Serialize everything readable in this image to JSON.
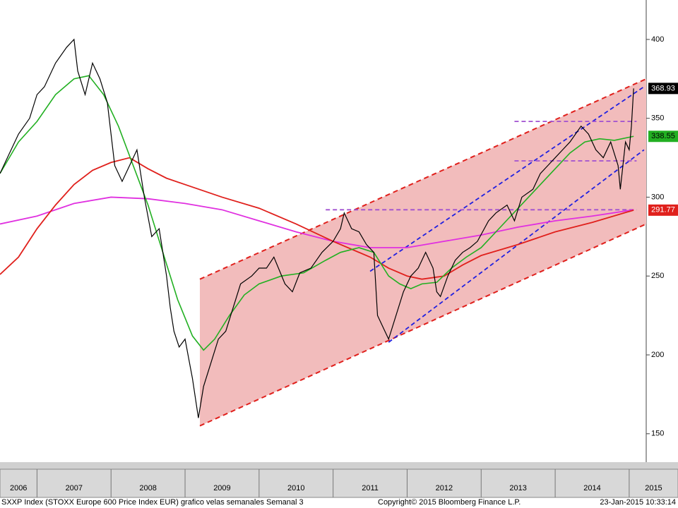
{
  "chart_data": {
    "type": "line",
    "xlim": [
      2006.5,
      2015.23
    ],
    "xticks": [
      2006,
      2007,
      2008,
      2009,
      2010,
      2011,
      2012,
      2013,
      2014,
      2015
    ],
    "ylim": [
      132,
      425
    ],
    "yticks": [
      150,
      200,
      250,
      300,
      350,
      400
    ],
    "series": [
      {
        "color": "#000000",
        "width": 1.2,
        "last_value": 368.93,
        "label_text": "#ffffff",
        "x": [
          2006.5,
          2006.6,
          2006.75,
          2006.9,
          2007.0,
          2007.1,
          2007.25,
          2007.4,
          2007.5,
          2007.55,
          2007.65,
          2007.75,
          2007.85,
          2007.95,
          2008.0,
          2008.05,
          2008.15,
          2008.25,
          2008.35,
          2008.45,
          2008.55,
          2008.65,
          2008.75,
          2008.8,
          2008.85,
          2008.92,
          2009.0,
          2009.1,
          2009.18,
          2009.25,
          2009.35,
          2009.45,
          2009.55,
          2009.65,
          2009.75,
          2009.9,
          2010.0,
          2010.1,
          2010.2,
          2010.35,
          2010.45,
          2010.55,
          2010.7,
          2010.85,
          2011.0,
          2011.1,
          2011.15,
          2011.25,
          2011.35,
          2011.45,
          2011.55,
          2011.6,
          2011.7,
          2011.75,
          2011.85,
          2011.95,
          2012.05,
          2012.15,
          2012.25,
          2012.35,
          2012.4,
          2012.45,
          2012.55,
          2012.65,
          2012.75,
          2012.85,
          2012.95,
          2013.1,
          2013.2,
          2013.35,
          2013.45,
          2013.55,
          2013.7,
          2013.8,
          2013.9,
          2014.0,
          2014.1,
          2014.2,
          2014.35,
          2014.45,
          2014.55,
          2014.65,
          2014.75,
          2014.85,
          2014.88,
          2014.95,
          2015.0,
          2015.03,
          2015.06
        ],
        "values": [
          315,
          325,
          340,
          350,
          365,
          370,
          385,
          395,
          400,
          380,
          365,
          385,
          375,
          360,
          340,
          320,
          310,
          320,
          330,
          300,
          275,
          280,
          250,
          230,
          215,
          205,
          210,
          185,
          160,
          180,
          195,
          210,
          215,
          230,
          245,
          250,
          255,
          255,
          262,
          245,
          240,
          252,
          255,
          265,
          272,
          280,
          290,
          280,
          278,
          270,
          265,
          225,
          215,
          210,
          225,
          240,
          250,
          255,
          265,
          255,
          240,
          237,
          250,
          260,
          265,
          268,
          272,
          285,
          290,
          295,
          285,
          300,
          305,
          315,
          320,
          325,
          330,
          335,
          345,
          340,
          330,
          325,
          335,
          320,
          305,
          335,
          330,
          345,
          368.93
        ]
      },
      {
        "color": "#22b022",
        "width": 1.6,
        "last_value": 338.55,
        "label_text": "#000000",
        "x": [
          2006.5,
          2006.75,
          2007.0,
          2007.25,
          2007.5,
          2007.7,
          2007.9,
          2008.1,
          2008.3,
          2008.5,
          2008.7,
          2008.9,
          2009.1,
          2009.25,
          2009.4,
          2009.6,
          2009.8,
          2010.0,
          2010.3,
          2010.6,
          2010.9,
          2011.1,
          2011.35,
          2011.55,
          2011.75,
          2011.9,
          2012.05,
          2012.2,
          2012.4,
          2012.6,
          2012.8,
          2013.0,
          2013.2,
          2013.4,
          2013.6,
          2013.8,
          2014.0,
          2014.2,
          2014.4,
          2014.6,
          2014.8,
          2015.0,
          2015.06
        ],
        "values": [
          315,
          335,
          348,
          365,
          375,
          377,
          365,
          345,
          320,
          295,
          265,
          235,
          212,
          203,
          210,
          225,
          238,
          245,
          250,
          252,
          260,
          265,
          268,
          265,
          250,
          245,
          242,
          245,
          246,
          255,
          262,
          268,
          278,
          288,
          298,
          308,
          318,
          328,
          335,
          337,
          336,
          338,
          338.55
        ]
      },
      {
        "color": "#e0201c",
        "width": 1.8,
        "last_value": 291.77,
        "label_text": "#ffffff",
        "x": [
          2006.5,
          2006.75,
          2007.0,
          2007.25,
          2007.5,
          2007.75,
          2008.0,
          2008.25,
          2008.5,
          2008.75,
          2009.0,
          2009.5,
          2010.0,
          2010.5,
          2011.0,
          2011.5,
          2011.75,
          2012.0,
          2012.2,
          2012.5,
          2012.75,
          2013.0,
          2013.5,
          2014.0,
          2014.5,
          2015.06
        ],
        "values": [
          251,
          262,
          280,
          295,
          308,
          317,
          322,
          325,
          318,
          312,
          308,
          300,
          293,
          283,
          272,
          262,
          255,
          250,
          248,
          250,
          257,
          263,
          270,
          278,
          284,
          291.77
        ]
      },
      {
        "color": "#e030e0",
        "width": 1.8,
        "x": [
          2006.5,
          2007.0,
          2007.5,
          2008.0,
          2008.5,
          2009.0,
          2009.5,
          2010.0,
          2010.5,
          2011.0,
          2011.5,
          2012.0,
          2012.5,
          2013.0,
          2013.5,
          2014.0,
          2014.5,
          2015.06
        ],
        "values": [
          283,
          288,
          296,
          300,
          299,
          296,
          292,
          285,
          278,
          272,
          268,
          268,
          272,
          276,
          281,
          285,
          288,
          292
        ]
      }
    ],
    "channel": {
      "fill": "#f2bcbc",
      "color": "#e0201c",
      "upper": {
        "x": [
          2009.2,
          2015.23
        ],
        "values": [
          248,
          375
        ]
      },
      "lower": {
        "x": [
          2009.2,
          2015.23
        ],
        "values": [
          155,
          283
        ]
      }
    },
    "trend_lines": [
      {
        "color": "#2020e0",
        "x": [
          2011.5,
          2015.2
        ],
        "values": [
          253,
          370
        ]
      },
      {
        "color": "#2020e0",
        "x": [
          2011.75,
          2015.2
        ],
        "values": [
          208,
          330
        ]
      },
      {
        "color": "#a050d0",
        "x": [
          2010.9,
          2015.1
        ],
        "values": [
          292,
          292
        ]
      },
      {
        "color": "#a050d0",
        "x": [
          2013.45,
          2015.1
        ],
        "values": [
          348,
          348
        ]
      },
      {
        "color": "#a050d0",
        "x": [
          2013.45,
          2015.1
        ],
        "values": [
          323,
          323
        ]
      }
    ],
    "footer": {
      "left": "SXXP Index (STOXX Europe 600 Price Index EUR) grafico velas semanales  Semanal 3",
      "center": "Copyright© 2015 Bloomberg Finance L.P.",
      "right": "23-Jan-2015 10:33:14"
    }
  }
}
